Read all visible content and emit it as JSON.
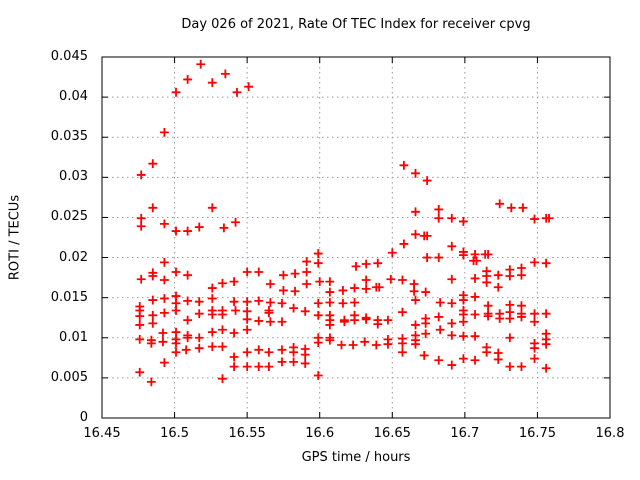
{
  "chart_data": {
    "type": "scatter",
    "title": "Day 026 of 2021, Rate Of TEC Index for receiver cpvg",
    "xlabel": "GPS time / hours",
    "ylabel": "ROTI / TECUs",
    "xlim": [
      16.45,
      16.8
    ],
    "ylim": [
      0,
      0.045
    ],
    "grid": true,
    "legend_position": "none",
    "marker": {
      "shape": "plus",
      "color": "#ff0000"
    },
    "grid_color": "#999999",
    "border_color": "#000000",
    "xticks": {
      "values": [
        16.45,
        16.5,
        16.55,
        16.6,
        16.65,
        16.7,
        16.75,
        16.8
      ],
      "labels": [
        "16.45",
        "16.5",
        "16.55",
        "16.6",
        "16.65",
        "16.7",
        "16.75",
        "16.8"
      ]
    },
    "yticks": {
      "values": [
        0,
        0.005,
        0.01,
        0.015,
        0.02,
        0.025,
        0.03,
        0.035,
        0.04,
        0.045
      ],
      "labels": [
        "0",
        "0.005",
        "0.01",
        "0.015",
        "0.02",
        "0.025",
        "0.03",
        "0.035",
        "0.04",
        "0.045"
      ]
    },
    "series": [
      {
        "name": "ROTI",
        "points": [
          [
            16.477,
            0.0303
          ],
          [
            16.485,
            0.0317
          ],
          [
            16.493,
            0.0356
          ],
          [
            16.501,
            0.0406
          ],
          [
            16.509,
            0.0422
          ],
          [
            16.518,
            0.0441
          ],
          [
            16.526,
            0.0418
          ],
          [
            16.535,
            0.0429
          ],
          [
            16.543,
            0.0406
          ],
          [
            16.551,
            0.0413
          ],
          [
            16.658,
            0.0315
          ],
          [
            16.666,
            0.0305
          ],
          [
            16.674,
            0.0296
          ],
          [
            16.477,
            0.0249
          ],
          [
            16.477,
            0.0239
          ],
          [
            16.485,
            0.0262
          ],
          [
            16.493,
            0.0242
          ],
          [
            16.501,
            0.0233
          ],
          [
            16.509,
            0.0233
          ],
          [
            16.517,
            0.0238
          ],
          [
            16.526,
            0.0262
          ],
          [
            16.534,
            0.0237
          ],
          [
            16.542,
            0.0244
          ],
          [
            16.65,
            0.0206
          ],
          [
            16.658,
            0.0217
          ],
          [
            16.666,
            0.0229
          ],
          [
            16.666,
            0.0257
          ],
          [
            16.672,
            0.0227
          ],
          [
            16.674,
            0.0227
          ],
          [
            16.674,
            0.02
          ],
          [
            16.682,
            0.02
          ],
          [
            16.682,
            0.0249
          ],
          [
            16.682,
            0.026
          ],
          [
            16.691,
            0.0249
          ],
          [
            16.691,
            0.0214
          ],
          [
            16.699,
            0.0245
          ],
          [
            16.699,
            0.0207
          ],
          [
            16.699,
            0.0203
          ],
          [
            16.707,
            0.0204
          ],
          [
            16.706,
            0.0196
          ],
          [
            16.708,
            0.0196
          ],
          [
            16.714,
            0.0204
          ],
          [
            16.716,
            0.0204
          ],
          [
            16.724,
            0.0267
          ],
          [
            16.732,
            0.0262
          ],
          [
            16.74,
            0.0262
          ],
          [
            16.748,
            0.0248
          ],
          [
            16.756,
            0.0249
          ],
          [
            16.758,
            0.0249
          ],
          [
            16.748,
            0.0194
          ],
          [
            16.756,
            0.0193
          ],
          [
            16.477,
            0.0173
          ],
          [
            16.485,
            0.0181
          ],
          [
            16.485,
            0.0177
          ],
          [
            16.493,
            0.0194
          ],
          [
            16.493,
            0.0172
          ],
          [
            16.501,
            0.0182
          ],
          [
            16.509,
            0.0178
          ],
          [
            16.526,
            0.0162
          ],
          [
            16.533,
            0.0168
          ],
          [
            16.541,
            0.017
          ],
          [
            16.55,
            0.0182
          ],
          [
            16.558,
            0.0182
          ],
          [
            16.566,
            0.0167
          ],
          [
            16.575,
            0.0178
          ],
          [
            16.575,
            0.0159
          ],
          [
            16.583,
            0.018
          ],
          [
            16.583,
            0.0158
          ],
          [
            16.591,
            0.0195
          ],
          [
            16.591,
            0.0182
          ],
          [
            16.591,
            0.0167
          ],
          [
            16.599,
            0.0205
          ],
          [
            16.599,
            0.0193
          ],
          [
            16.6,
            0.017
          ],
          [
            16.607,
            0.017
          ],
          [
            16.607,
            0.0157
          ],
          [
            16.616,
            0.0159
          ],
          [
            16.624,
            0.0162
          ],
          [
            16.625,
            0.0189
          ],
          [
            16.632,
            0.0192
          ],
          [
            16.632,
            0.0172
          ],
          [
            16.632,
            0.0161
          ],
          [
            16.639,
            0.0163
          ],
          [
            16.641,
            0.0163
          ],
          [
            16.64,
            0.0193
          ],
          [
            16.649,
            0.0173
          ],
          [
            16.657,
            0.0172
          ],
          [
            16.665,
            0.0167
          ],
          [
            16.665,
            0.0158
          ],
          [
            16.673,
            0.0157
          ],
          [
            16.691,
            0.0173
          ],
          [
            16.699,
            0.0153
          ],
          [
            16.707,
            0.0174
          ],
          [
            16.715,
            0.0183
          ],
          [
            16.715,
            0.0177
          ],
          [
            16.715,
            0.0169
          ],
          [
            16.723,
            0.0178
          ],
          [
            16.723,
            0.0163
          ],
          [
            16.731,
            0.0185
          ],
          [
            16.731,
            0.0177
          ],
          [
            16.739,
            0.0187
          ],
          [
            16.739,
            0.0178
          ],
          [
            16.476,
            0.0139
          ],
          [
            16.485,
            0.0147
          ],
          [
            16.493,
            0.0149
          ],
          [
            16.501,
            0.0152
          ],
          [
            16.501,
            0.0143
          ],
          [
            16.509,
            0.0146
          ],
          [
            16.517,
            0.0145
          ],
          [
            16.526,
            0.0149
          ],
          [
            16.541,
            0.0145
          ],
          [
            16.55,
            0.0145
          ],
          [
            16.558,
            0.0146
          ],
          [
            16.566,
            0.0144
          ],
          [
            16.574,
            0.0143
          ],
          [
            16.582,
            0.0137
          ],
          [
            16.599,
            0.0143
          ],
          [
            16.607,
            0.0144
          ],
          [
            16.616,
            0.0143
          ],
          [
            16.624,
            0.0144
          ],
          [
            16.666,
            0.0147
          ],
          [
            16.683,
            0.0144
          ],
          [
            16.691,
            0.0143
          ],
          [
            16.699,
            0.0147
          ],
          [
            16.707,
            0.0151
          ],
          [
            16.716,
            0.014
          ],
          [
            16.731,
            0.0141
          ],
          [
            16.739,
            0.014
          ],
          [
            16.476,
            0.0134
          ],
          [
            16.476,
            0.0127
          ],
          [
            16.476,
            0.0116
          ],
          [
            16.485,
            0.0128
          ],
          [
            16.485,
            0.0118
          ],
          [
            16.493,
            0.0131
          ],
          [
            16.501,
            0.0134
          ],
          [
            16.509,
            0.0122
          ],
          [
            16.517,
            0.013
          ],
          [
            16.526,
            0.0134
          ],
          [
            16.526,
            0.0129
          ],
          [
            16.533,
            0.0134
          ],
          [
            16.533,
            0.0129
          ],
          [
            16.542,
            0.0134
          ],
          [
            16.55,
            0.0133
          ],
          [
            16.55,
            0.0123
          ],
          [
            16.558,
            0.0121
          ],
          [
            16.565,
            0.0134
          ],
          [
            16.565,
            0.0131
          ],
          [
            16.566,
            0.012
          ],
          [
            16.574,
            0.012
          ],
          [
            16.59,
            0.0133
          ],
          [
            16.599,
            0.0128
          ],
          [
            16.607,
            0.0128
          ],
          [
            16.607,
            0.0122
          ],
          [
            16.607,
            0.0116
          ],
          [
            16.617,
            0.0122
          ],
          [
            16.617,
            0.012
          ],
          [
            16.624,
            0.0128
          ],
          [
            16.624,
            0.0122
          ],
          [
            16.632,
            0.0125
          ],
          [
            16.632,
            0.0123
          ],
          [
            16.64,
            0.0122
          ],
          [
            16.64,
            0.0117
          ],
          [
            16.647,
            0.0122
          ],
          [
            16.657,
            0.0132
          ],
          [
            16.666,
            0.0116
          ],
          [
            16.673,
            0.0124
          ],
          [
            16.673,
            0.0118
          ],
          [
            16.682,
            0.0126
          ],
          [
            16.691,
            0.0118
          ],
          [
            16.699,
            0.0134
          ],
          [
            16.699,
            0.0129
          ],
          [
            16.699,
            0.012
          ],
          [
            16.707,
            0.0129
          ],
          [
            16.716,
            0.013
          ],
          [
            16.716,
            0.0127
          ],
          [
            16.724,
            0.013
          ],
          [
            16.724,
            0.0124
          ],
          [
            16.731,
            0.0132
          ],
          [
            16.731,
            0.0124
          ],
          [
            16.739,
            0.013
          ],
          [
            16.739,
            0.0126
          ],
          [
            16.748,
            0.013
          ],
          [
            16.748,
            0.012
          ],
          [
            16.756,
            0.013
          ],
          [
            16.476,
            0.0098
          ],
          [
            16.484,
            0.0097
          ],
          [
            16.484,
            0.0093
          ],
          [
            16.492,
            0.0106
          ],
          [
            16.492,
            0.0095
          ],
          [
            16.501,
            0.0107
          ],
          [
            16.501,
            0.0098
          ],
          [
            16.501,
            0.0093
          ],
          [
            16.509,
            0.0103
          ],
          [
            16.509,
            0.01
          ],
          [
            16.517,
            0.01
          ],
          [
            16.526,
            0.0107
          ],
          [
            16.533,
            0.011
          ],
          [
            16.541,
            0.0106
          ],
          [
            16.55,
            0.011
          ],
          [
            16.599,
            0.01
          ],
          [
            16.599,
            0.0094
          ],
          [
            16.607,
            0.01
          ],
          [
            16.607,
            0.0097
          ],
          [
            16.615,
            0.0091
          ],
          [
            16.623,
            0.0091
          ],
          [
            16.631,
            0.0095
          ],
          [
            16.639,
            0.0091
          ],
          [
            16.647,
            0.0098
          ],
          [
            16.647,
            0.0092
          ],
          [
            16.657,
            0.0099
          ],
          [
            16.657,
            0.0093
          ],
          [
            16.666,
            0.0103
          ],
          [
            16.666,
            0.0097
          ],
          [
            16.666,
            0.0092
          ],
          [
            16.673,
            0.0105
          ],
          [
            16.683,
            0.011
          ],
          [
            16.691,
            0.0103
          ],
          [
            16.699,
            0.0102
          ],
          [
            16.707,
            0.0102
          ],
          [
            16.731,
            0.01
          ],
          [
            16.748,
            0.0093
          ],
          [
            16.756,
            0.0105
          ],
          [
            16.756,
            0.0098
          ],
          [
            16.756,
            0.0092
          ],
          [
            16.493,
            0.0069
          ],
          [
            16.501,
            0.0082
          ],
          [
            16.508,
            0.0085
          ],
          [
            16.517,
            0.0087
          ],
          [
            16.526,
            0.0089
          ],
          [
            16.533,
            0.0089
          ],
          [
            16.541,
            0.0076
          ],
          [
            16.541,
            0.0064
          ],
          [
            16.55,
            0.0082
          ],
          [
            16.55,
            0.0064
          ],
          [
            16.558,
            0.0085
          ],
          [
            16.558,
            0.0064
          ],
          [
            16.565,
            0.0082
          ],
          [
            16.565,
            0.0064
          ],
          [
            16.574,
            0.0085
          ],
          [
            16.574,
            0.007
          ],
          [
            16.582,
            0.0088
          ],
          [
            16.582,
            0.0082
          ],
          [
            16.582,
            0.007
          ],
          [
            16.59,
            0.0086
          ],
          [
            16.59,
            0.0079
          ],
          [
            16.59,
            0.0068
          ],
          [
            16.657,
            0.0082
          ],
          [
            16.672,
            0.0078
          ],
          [
            16.682,
            0.0072
          ],
          [
            16.691,
            0.0066
          ],
          [
            16.699,
            0.0074
          ],
          [
            16.707,
            0.0072
          ],
          [
            16.715,
            0.0088
          ],
          [
            16.715,
            0.0082
          ],
          [
            16.723,
            0.0081
          ],
          [
            16.723,
            0.0073
          ],
          [
            16.731,
            0.0064
          ],
          [
            16.739,
            0.0064
          ],
          [
            16.748,
            0.0087
          ],
          [
            16.748,
            0.0074
          ],
          [
            16.756,
            0.0062
          ],
          [
            16.476,
            0.0057
          ],
          [
            16.484,
            0.0045
          ],
          [
            16.533,
            0.0049
          ],
          [
            16.599,
            0.0053
          ]
        ]
      }
    ]
  }
}
